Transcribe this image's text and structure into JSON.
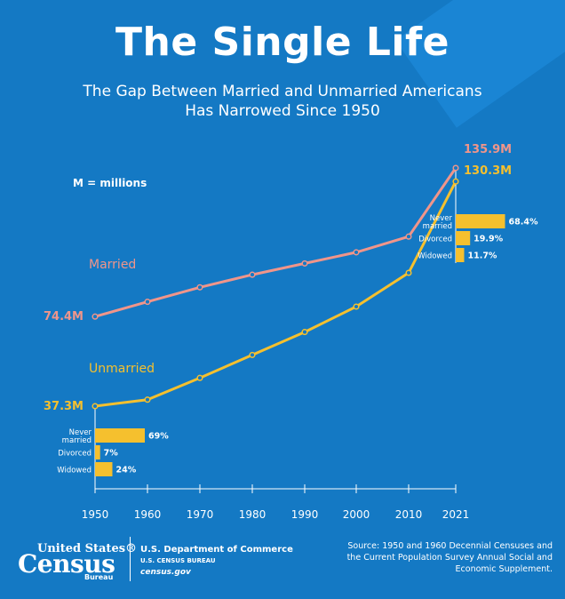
{
  "title": "The Single Life",
  "subtitle_line1": "The Gap Between Married and Unmarried Americans",
  "subtitle_line2": "Has Narrowed Since 1950",
  "note": "M = millions",
  "colors": {
    "married": "#f0958a",
    "unmarried": "#f5c02e",
    "background": "#1479c4",
    "text": "#ffffff"
  },
  "chart_data": {
    "type": "line",
    "x": [
      1950,
      1960,
      1970,
      1980,
      1990,
      2000,
      2010,
      2021
    ],
    "x_tick_labels": [
      "1950",
      "1960",
      "1970",
      "1980",
      "1990",
      "2000",
      "2010",
      "2021"
    ],
    "ylim": [
      0,
      150
    ],
    "grid": false,
    "series": [
      {
        "name": "Married",
        "values": [
          74.4,
          80.5,
          86.5,
          91.7,
          96.4,
          101.0,
          107.5,
          135.9
        ],
        "start_label": "74.4M",
        "end_label": "135.9M",
        "color": "#f0958a"
      },
      {
        "name": "Unmarried",
        "values": [
          37.3,
          40.0,
          49.0,
          58.5,
          68.0,
          78.5,
          92.5,
          130.3
        ],
        "start_label": "37.3M",
        "end_label": "130.3M",
        "color": "#f5c02e"
      }
    ],
    "breakdowns": [
      {
        "year": "1950",
        "items": [
          {
            "label": "Never married",
            "value": 69,
            "text": "69%"
          },
          {
            "label": "Divorced",
            "value": 7,
            "text": "7%"
          },
          {
            "label": "Widowed",
            "value": 24,
            "text": "24%"
          }
        ]
      },
      {
        "year": "2021",
        "items": [
          {
            "label": "Never married",
            "value": 68.4,
            "text": "68.4%"
          },
          {
            "label": "Divorced",
            "value": 19.9,
            "text": "19.9%"
          },
          {
            "label": "Widowed",
            "value": 11.7,
            "text": "11.7%"
          }
        ]
      }
    ]
  },
  "footer": {
    "logo_top": "United States®",
    "logo_main": "Census",
    "logo_bureau": "Bureau",
    "dept_line1": "U.S. Department of Commerce",
    "dept_line2": "U.S. CENSUS BUREAU",
    "dept_line3": "census.gov",
    "source": "Source: 1950 and 1960 Decennial Censuses and the Current Population Survey Annual Social and Economic Supplement."
  }
}
